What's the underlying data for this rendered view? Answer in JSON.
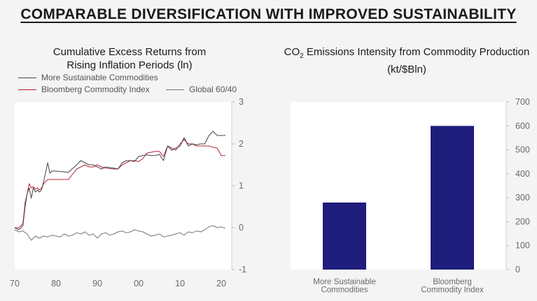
{
  "title": "COMPARABLE DIVERSIFICATION WITH IMPROVED SUSTAINABILITY",
  "chart_data": [
    {
      "type": "line",
      "title_line1": "Cumulative Excess Returns from",
      "title_line2": "Rising Inflation Periods (ln)",
      "ylim": [
        -1,
        3
      ],
      "xlim": [
        1970,
        2021
      ],
      "yticks": [
        "3",
        "2",
        "1",
        "0",
        "-1"
      ],
      "xticks": [
        "70",
        "80",
        "90",
        "00",
        "10",
        "20"
      ],
      "grid": false,
      "legend": "top-left",
      "series": [
        {
          "name": "More Sustainable Commodities",
          "color": "#444444",
          "x": [
            1970,
            1971,
            1972,
            1972.5,
            1973,
            1973.5,
            1974,
            1974.5,
            1975,
            1975.5,
            1976,
            1976.5,
            1977,
            1978,
            1978.5,
            1979,
            1980,
            1983,
            1985,
            1986,
            1987,
            1988,
            1989,
            1990,
            1991,
            1992,
            1994,
            1995,
            1996,
            1997,
            1998,
            1999,
            2000,
            2001,
            2002,
            2003,
            2004,
            2005,
            2006,
            2007,
            2008,
            2009,
            2010,
            2011,
            2012,
            2013,
            2014,
            2015,
            2016,
            2017,
            2018,
            2019,
            2020,
            2021
          ],
          "y": [
            0,
            -0.05,
            0.05,
            0.5,
            0.8,
            0.95,
            0.7,
            0.95,
            0.85,
            0.9,
            0.85,
            0.9,
            1.1,
            1.55,
            1.3,
            1.35,
            1.35,
            1.32,
            1.5,
            1.6,
            1.55,
            1.5,
            1.5,
            1.45,
            1.4,
            1.45,
            1.42,
            1.4,
            1.55,
            1.6,
            1.6,
            1.58,
            1.7,
            1.72,
            1.74,
            1.72,
            1.72,
            1.75,
            1.6,
            1.95,
            1.85,
            1.9,
            1.95,
            2.15,
            1.95,
            2.0,
            1.98,
            2.0,
            2.0,
            2.2,
            2.3,
            2.2,
            2.2,
            2.2
          ]
        },
        {
          "name": "Bloomberg Commodity Index",
          "color": "#b8243a",
          "x": [
            1970,
            1971,
            1972,
            1972.5,
            1973,
            1973.5,
            1974,
            1974.5,
            1975,
            1975.5,
            1976,
            1976.5,
            1977,
            1978,
            1979,
            1980,
            1983,
            1985,
            1986,
            1987,
            1988,
            1989,
            1990,
            1991,
            1992,
            1994,
            1995,
            1996,
            1997,
            1998,
            1999,
            2000,
            2001,
            2002,
            2003,
            2004,
            2005,
            2006,
            2007,
            2008,
            2009,
            2010,
            2011,
            2012,
            2013,
            2014,
            2015,
            2016,
            2017,
            2018,
            2019,
            2020,
            2021
          ],
          "y": [
            0,
            0,
            0.1,
            0.6,
            0.8,
            1.05,
            0.95,
            0.98,
            0.92,
            0.95,
            0.9,
            0.95,
            1.05,
            1.15,
            1.15,
            1.15,
            1.15,
            1.4,
            1.45,
            1.5,
            1.45,
            1.45,
            1.5,
            1.45,
            1.42,
            1.4,
            1.4,
            1.5,
            1.55,
            1.6,
            1.6,
            1.58,
            1.65,
            1.78,
            1.8,
            1.82,
            1.82,
            1.7,
            1.95,
            1.9,
            1.85,
            2.0,
            2.1,
            2.0,
            2.0,
            1.95,
            1.95,
            1.95,
            1.95,
            1.92,
            1.9,
            1.72,
            1.72
          ]
        },
        {
          "name": "Global 60/40",
          "color": "#777777",
          "x": [
            1970,
            1971,
            1972,
            1973,
            1974,
            1975,
            1976,
            1977,
            1978,
            1979,
            1980,
            1981,
            1982,
            1983,
            1984,
            1985,
            1986,
            1987,
            1988,
            1989,
            1990,
            1991,
            1992,
            1993,
            1994,
            1995,
            1996,
            1997,
            1998,
            1999,
            2000,
            2001,
            2002,
            2003,
            2004,
            2005,
            2006,
            2007,
            2008,
            2009,
            2010,
            2011,
            2012,
            2013,
            2014,
            2015,
            2016,
            2017,
            2018,
            2019,
            2020,
            2021
          ],
          "y": [
            -0.05,
            -0.1,
            -0.08,
            -0.15,
            -0.3,
            -0.2,
            -0.25,
            -0.2,
            -0.22,
            -0.18,
            -0.2,
            -0.22,
            -0.15,
            -0.2,
            -0.18,
            -0.12,
            -0.15,
            -0.1,
            -0.18,
            -0.15,
            -0.25,
            -0.15,
            -0.12,
            -0.18,
            -0.15,
            -0.1,
            -0.08,
            -0.12,
            -0.1,
            -0.05,
            -0.08,
            -0.1,
            -0.15,
            -0.2,
            -0.18,
            -0.15,
            -0.22,
            -0.2,
            -0.18,
            -0.15,
            -0.12,
            -0.18,
            -0.1,
            -0.12,
            -0.08,
            -0.1,
            -0.05,
            0.02,
            0.05,
            0.0,
            0.02,
            -0.02
          ]
        }
      ]
    },
    {
      "type": "bar",
      "title_prefix": "CO",
      "title_sub": "2",
      "title_suffix": " Emissions Intensity from Commodity Production",
      "title_line2": "(kt/$Bln)",
      "ylim": [
        0,
        700
      ],
      "yticks": [
        "700",
        "600",
        "500",
        "400",
        "300",
        "200",
        "100",
        "0"
      ],
      "categories": [
        [
          "More Sustainable",
          "Commodities"
        ],
        [
          "Bloomberg",
          "Commodity Index"
        ]
      ],
      "values": [
        280,
        600
      ],
      "bar_color": "#1e1d7c",
      "grid": false
    }
  ]
}
